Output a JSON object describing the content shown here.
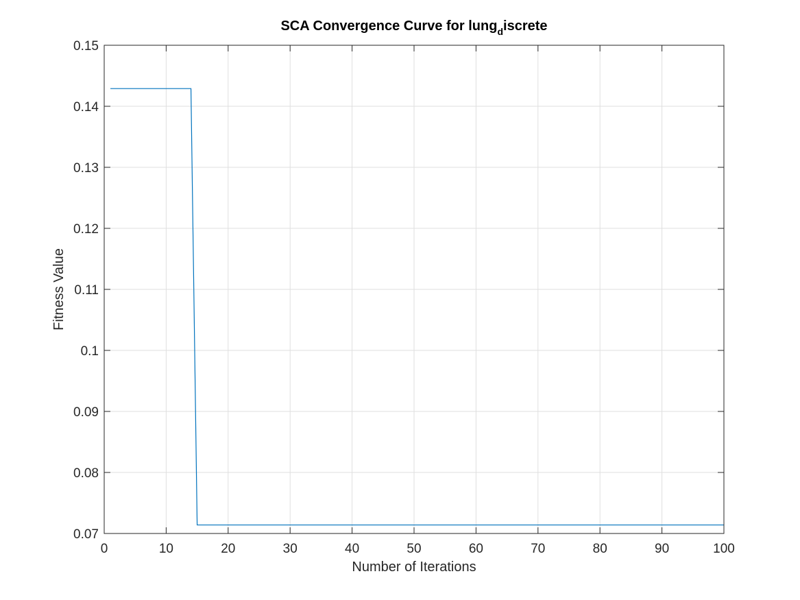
{
  "chart_data": {
    "type": "line",
    "title_main": "SCA Convergence Curve for lung",
    "title_sub": "d",
    "title_rest": "iscrete",
    "xlabel": "Number of Iterations",
    "ylabel": "Fitness Value",
    "xlim": [
      0,
      100
    ],
    "ylim": [
      0.07,
      0.15
    ],
    "xticks": [
      "0",
      "10",
      "20",
      "30",
      "40",
      "50",
      "60",
      "70",
      "80",
      "90",
      "100"
    ],
    "yticks": [
      "0.07",
      "0.08",
      "0.09",
      "0.1",
      "0.11",
      "0.12",
      "0.13",
      "0.14",
      "0.15"
    ],
    "grid": true,
    "series": [
      {
        "color": "#0072bd",
        "x": [
          1,
          14,
          15,
          100
        ],
        "y": [
          0.1429,
          0.1429,
          0.0714,
          0.0714
        ]
      }
    ]
  }
}
